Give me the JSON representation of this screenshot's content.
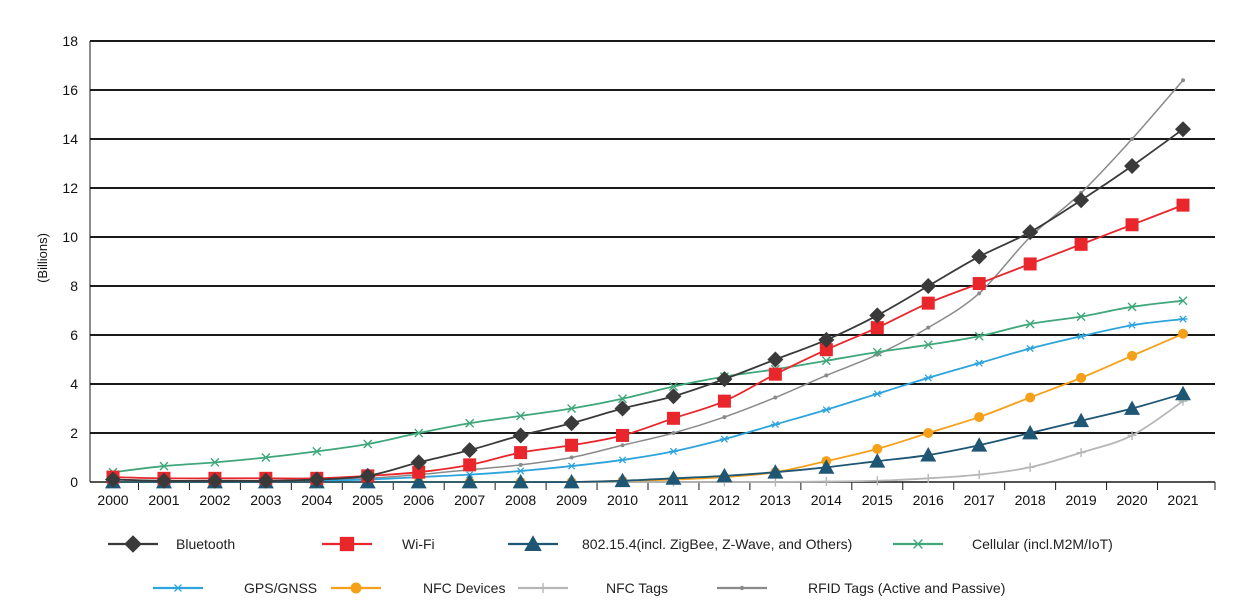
{
  "chart_data": {
    "type": "line",
    "title": "",
    "xlabel": "",
    "ylabel": "(Billions)",
    "x": [
      2000,
      2001,
      2002,
      2003,
      2004,
      2005,
      2006,
      2007,
      2008,
      2009,
      2010,
      2011,
      2012,
      2013,
      2014,
      2015,
      2016,
      2017,
      2018,
      2019,
      2020,
      2021
    ],
    "x_tick_labels": [
      "2000",
      "2001",
      "2002",
      "2003",
      "2004",
      "2005",
      "2006",
      "2007",
      "2008",
      "2009",
      "2010",
      "2011",
      "2012",
      "2013",
      "2014",
      "2015",
      "2016",
      "2017",
      "2018",
      "2019",
      "2020",
      "2021"
    ],
    "ylim": [
      0,
      18
    ],
    "y_ticks": [
      0,
      2,
      4,
      6,
      8,
      10,
      12,
      14,
      16,
      18
    ],
    "y_tick_labels": [
      "0",
      "2",
      "4",
      "6",
      "8",
      "10",
      "12",
      "14",
      "16",
      "18"
    ],
    "grid": "horizontal",
    "legend_position": "bottom",
    "series": [
      {
        "name": "Bluetooth",
        "color": "#3a3a3a",
        "marker": "diamond",
        "values": [
          0.1,
          0.05,
          0.05,
          0.05,
          0.1,
          0.25,
          0.8,
          1.3,
          1.9,
          2.4,
          3.0,
          3.5,
          4.2,
          5.0,
          5.8,
          6.8,
          8.0,
          9.2,
          10.2,
          11.5,
          12.9,
          14.4
        ]
      },
      {
        "name": "Wi-Fi",
        "color": "#e8262b",
        "marker": "square",
        "values": [
          0.2,
          0.15,
          0.15,
          0.15,
          0.15,
          0.25,
          0.4,
          0.7,
          1.2,
          1.5,
          1.9,
          2.6,
          3.3,
          4.4,
          5.4,
          6.3,
          7.3,
          8.1,
          8.9,
          9.7,
          10.5,
          11.3
        ]
      },
      {
        "name": "802.15.4(incl. ZigBee, Z-Wave, and Others)",
        "color": "#1e5673",
        "marker": "triangle",
        "values": [
          0,
          0,
          0,
          0,
          0,
          0,
          0,
          0,
          0,
          0,
          0.05,
          0.15,
          0.25,
          0.4,
          0.6,
          0.85,
          1.1,
          1.5,
          2.0,
          2.5,
          3.0,
          3.6
        ]
      },
      {
        "name": "Cellular (incl.M2M/IoT)",
        "color": "#3fa77a",
        "marker": "x",
        "values": [
          0.4,
          0.65,
          0.8,
          1.0,
          1.25,
          1.55,
          2.0,
          2.4,
          2.7,
          3.0,
          3.4,
          3.9,
          4.3,
          4.6,
          4.95,
          5.3,
          5.6,
          5.95,
          6.45,
          6.75,
          7.15,
          7.4
        ]
      },
      {
        "name": "GPS/GNSS",
        "color": "#2ea4dd",
        "marker": "star",
        "values": [
          0,
          0,
          0,
          0,
          0.05,
          0.1,
          0.2,
          0.3,
          0.45,
          0.65,
          0.9,
          1.25,
          1.75,
          2.35,
          2.95,
          3.6,
          4.25,
          4.85,
          5.45,
          5.95,
          6.4,
          6.65
        ]
      },
      {
        "name": "NFC Devices",
        "color": "#f5a019",
        "marker": "circle",
        "values": [
          0,
          0,
          0,
          0,
          0,
          0,
          0,
          0,
          0,
          0,
          0.05,
          0.1,
          0.2,
          0.4,
          0.85,
          1.35,
          2.0,
          2.65,
          3.45,
          4.25,
          5.15,
          6.05
        ]
      },
      {
        "name": "NFC Tags",
        "color": "#b6b6b6",
        "marker": "plus",
        "values": [
          0,
          0,
          0,
          0,
          0,
          0,
          0,
          0,
          0,
          0,
          0,
          0,
          0,
          0,
          0.02,
          0.05,
          0.15,
          0.3,
          0.6,
          1.2,
          1.9,
          3.3
        ]
      },
      {
        "name": "RFID Tags (Active and Passive)",
        "color": "#8a8a8a",
        "marker": "dot",
        "values": [
          0,
          0,
          0,
          0,
          0.05,
          0.15,
          0.3,
          0.5,
          0.7,
          1.0,
          1.5,
          2.0,
          2.65,
          3.45,
          4.35,
          5.2,
          6.3,
          7.7,
          10.0,
          11.8,
          14.0,
          16.4
        ]
      }
    ]
  }
}
